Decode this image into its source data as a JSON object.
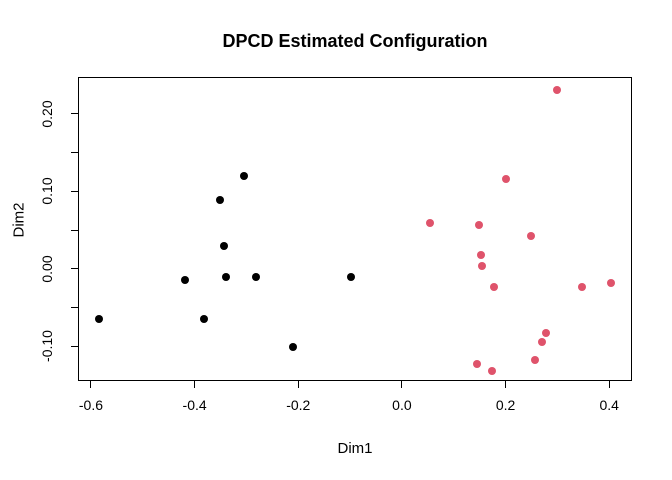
{
  "chart_data": {
    "type": "scatter",
    "title": "DPCD Estimated Configuration",
    "xlabel": "Dim1",
    "ylabel": "Dim2",
    "xlim": [
      -0.625,
      0.444
    ],
    "ylim": [
      -0.1445,
      0.2471
    ],
    "grid": false,
    "legend": "none",
    "x_ticks": [
      -0.6,
      -0.4,
      -0.2,
      0.0,
      0.2,
      0.4
    ],
    "x_tick_labels": [
      "-0.6",
      "-0.4",
      "-0.2",
      "0.0",
      "0.2",
      "0.4"
    ],
    "y_ticks": [
      -0.1,
      -0.05,
      0.0,
      0.05,
      0.1,
      0.15,
      0.2
    ],
    "y_tick_labels": [
      "-0.10",
      "",
      "0.00",
      "",
      "0.10",
      "",
      "0.20"
    ],
    "series": [
      {
        "name": "cluster-black",
        "color": "#000000",
        "marker": "filled-circle",
        "points": [
          [
            -0.585,
            -0.064
          ],
          [
            -0.418,
            -0.015
          ],
          [
            -0.382,
            -0.064
          ],
          [
            -0.351,
            0.089
          ],
          [
            -0.344,
            0.03
          ],
          [
            -0.34,
            -0.011
          ],
          [
            -0.304,
            0.12
          ],
          [
            -0.282,
            -0.011
          ],
          [
            -0.21,
            -0.101
          ],
          [
            -0.099,
            -0.01
          ]
        ]
      },
      {
        "name": "cluster-pink",
        "color": "#DF536B",
        "marker": "filled-circle",
        "points": [
          [
            0.055,
            0.059
          ],
          [
            0.145,
            -0.122
          ],
          [
            0.148,
            0.057
          ],
          [
            0.152,
            0.018
          ],
          [
            0.154,
            0.004
          ],
          [
            0.174,
            -0.131
          ],
          [
            0.178,
            -0.024
          ],
          [
            0.2,
            0.116
          ],
          [
            0.25,
            0.042
          ],
          [
            0.257,
            -0.118
          ],
          [
            0.271,
            -0.094
          ],
          [
            0.279,
            -0.083
          ],
          [
            0.3,
            0.23
          ],
          [
            0.347,
            -0.024
          ],
          [
            0.404,
            -0.018
          ]
        ]
      }
    ]
  }
}
